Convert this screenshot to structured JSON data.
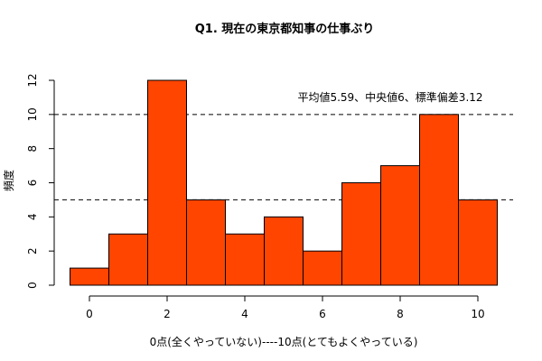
{
  "chart_data": {
    "type": "bar",
    "title": "Q1. 現在の東京都知事の仕事ぶり",
    "xlabel": "0点(全くやっていない)----10点(とてもよくやっている)",
    "ylabel": "頻度",
    "categories": [
      "0",
      "1",
      "2",
      "3",
      "4",
      "5",
      "6",
      "7",
      "8",
      "9",
      "10"
    ],
    "values": [
      1,
      3,
      12,
      5,
      3,
      4,
      2,
      6,
      7,
      10,
      5
    ],
    "x_ticks": [
      "0",
      "2",
      "4",
      "6",
      "8",
      "10"
    ],
    "y_ticks": [
      "0",
      "2",
      "4",
      "6",
      "8",
      "10",
      "12"
    ],
    "ylim": [
      0,
      12
    ],
    "reference_lines": [
      10,
      5
    ],
    "annotation": "平均値5.59、中央値6、標準偏差3.12",
    "bar_color": "#ff4500",
    "grid": false
  }
}
